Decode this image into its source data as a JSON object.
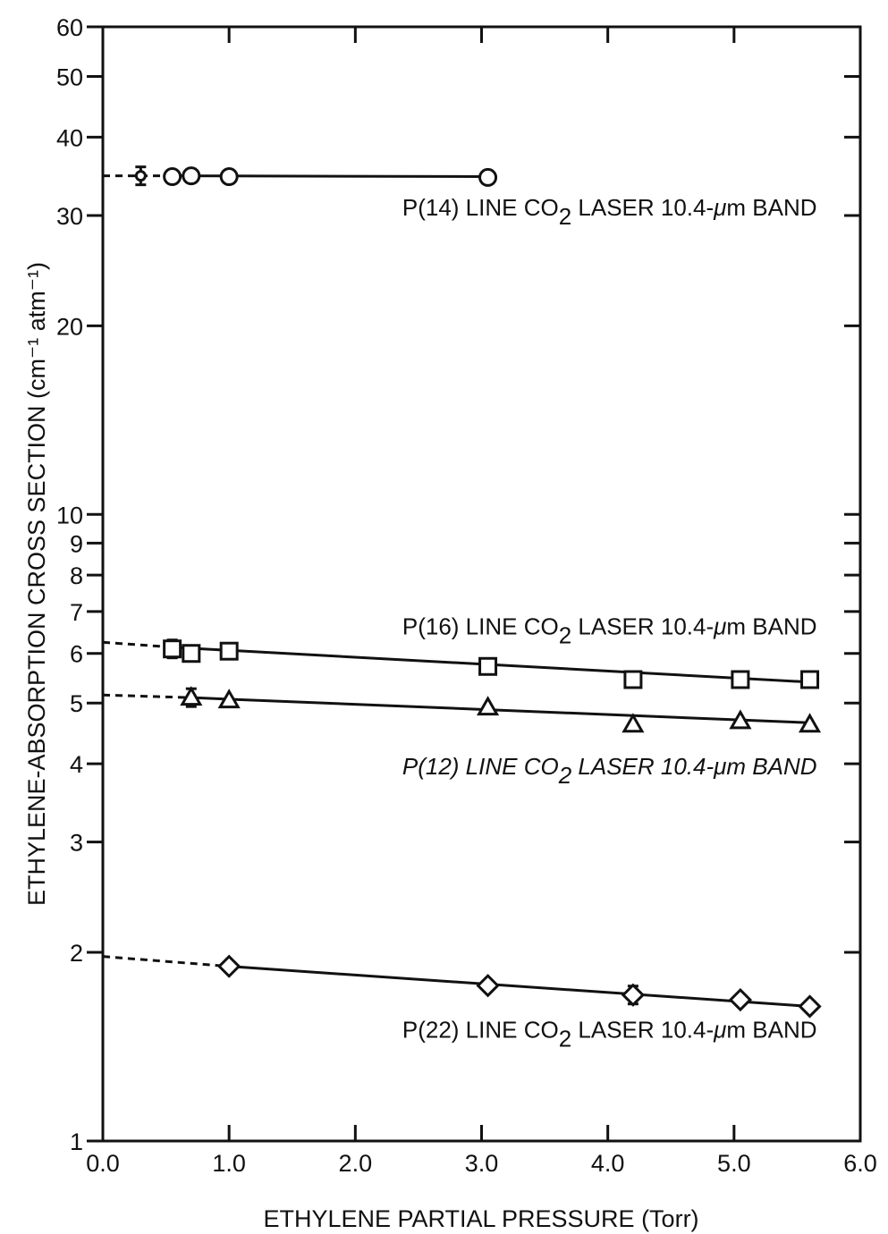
{
  "chart_data": {
    "type": "line",
    "xlabel": "ETHYLENE PARTIAL PRESSURE (Torr)",
    "ylabel": "ETHYLENE-ABSORPTION CROSS SECTION (cm⁻¹ atm⁻¹)",
    "xlim": [
      0.0,
      6.0
    ],
    "ylim": [
      1,
      60
    ],
    "yscale": "log",
    "grid": false,
    "x_ticks": [
      "0.0",
      "1.0",
      "2.0",
      "3.0",
      "4.0",
      "5.0",
      "6.0"
    ],
    "y_ticks": [
      {
        "value": 1,
        "label": "1"
      },
      {
        "value": 2,
        "label": "2"
      },
      {
        "value": 3,
        "label": "3"
      },
      {
        "value": 4,
        "label": "4"
      },
      {
        "value": 5,
        "label": "5"
      },
      {
        "value": 6,
        "label": "6"
      },
      {
        "value": 7,
        "label": "7"
      },
      {
        "value": 8,
        "label": "8"
      },
      {
        "value": 9,
        "label": "9"
      },
      {
        "value": 10,
        "label": "10"
      },
      {
        "value": 20,
        "label": "20"
      },
      {
        "value": 30,
        "label": "30"
      },
      {
        "value": 40,
        "label": "40"
      },
      {
        "value": 50,
        "label": "50"
      },
      {
        "value": 60,
        "label": "60"
      }
    ],
    "series": [
      {
        "name": "P(14) LINE CO2 LASER 10.4-μm BAND",
        "label_parts": {
          "prefix": "P(14) LINE CO",
          "sub": "2",
          "suffix": " LASER 10.4-",
          "mu": "μ",
          "tail": "m BAND"
        },
        "label_italic": false,
        "label_anchor": [
          5.6,
          30.8
        ],
        "marker": "circle",
        "x": [
          0.3,
          0.55,
          0.7,
          1.0,
          3.05
        ],
        "y": [
          34.7,
          34.6,
          34.7,
          34.6,
          34.5
        ],
        "error_bar_points": [
          0
        ],
        "fit_start": [
          0.0,
          34.7
        ],
        "fit_dashed_end": [
          0.55,
          34.7
        ],
        "fit_end": [
          3.05,
          34.6
        ]
      },
      {
        "name": "P(16) LINE CO2 LASER 10.4-μm BAND",
        "label_parts": {
          "prefix": "P(16) LINE CO",
          "sub": "2",
          "suffix": " LASER 10.4-",
          "mu": "μ",
          "tail": "m BAND"
        },
        "label_italic": false,
        "label_anchor": [
          5.6,
          6.6
        ],
        "marker": "square",
        "x": [
          0.55,
          0.7,
          1.0,
          3.05,
          4.2,
          5.05,
          5.6
        ],
        "y": [
          6.1,
          6.0,
          6.05,
          5.72,
          5.45,
          5.45,
          5.45
        ],
        "error_bar_points": [
          0
        ],
        "fit_start": [
          0.0,
          6.25
        ],
        "fit_dashed_end": [
          0.6,
          6.13
        ],
        "fit_end": [
          5.6,
          5.4
        ]
      },
      {
        "name": "P(12) LINE CO2 LASER 10.4-μm BAND",
        "label_parts": {
          "prefix": "P(12) LINE CO",
          "sub": "2",
          "suffix": " LASER 10.4-",
          "mu": "μ",
          "tail": "m BAND"
        },
        "label_italic": true,
        "label_anchor": [
          5.6,
          3.95
        ],
        "marker": "triangle",
        "x": [
          0.7,
          1.0,
          3.05,
          4.2,
          5.05,
          5.6
        ],
        "y": [
          5.1,
          5.05,
          4.92,
          4.62,
          4.68,
          4.62
        ],
        "error_bar_points": [
          0
        ],
        "fit_start": [
          0.0,
          5.15
        ],
        "fit_dashed_end": [
          0.7,
          5.1
        ],
        "fit_end": [
          5.6,
          4.65
        ]
      },
      {
        "name": "P(22) LINE CO2 LASER 10.4-μm BAND",
        "label_parts": {
          "prefix": "P(22) LINE CO",
          "sub": "2",
          "suffix": " LASER 10.4-",
          "mu": "μ",
          "tail": "m BAND"
        },
        "label_italic": false,
        "label_anchor": [
          5.6,
          1.5
        ],
        "marker": "diamond",
        "x": [
          1.0,
          3.05,
          4.2,
          5.05,
          5.6
        ],
        "y": [
          1.9,
          1.77,
          1.71,
          1.68,
          1.64
        ],
        "error_bar_points": [
          2
        ],
        "fit_start": [
          0.0,
          1.97
        ],
        "fit_dashed_end": [
          1.0,
          1.9
        ],
        "fit_end": [
          5.6,
          1.64
        ]
      }
    ]
  }
}
